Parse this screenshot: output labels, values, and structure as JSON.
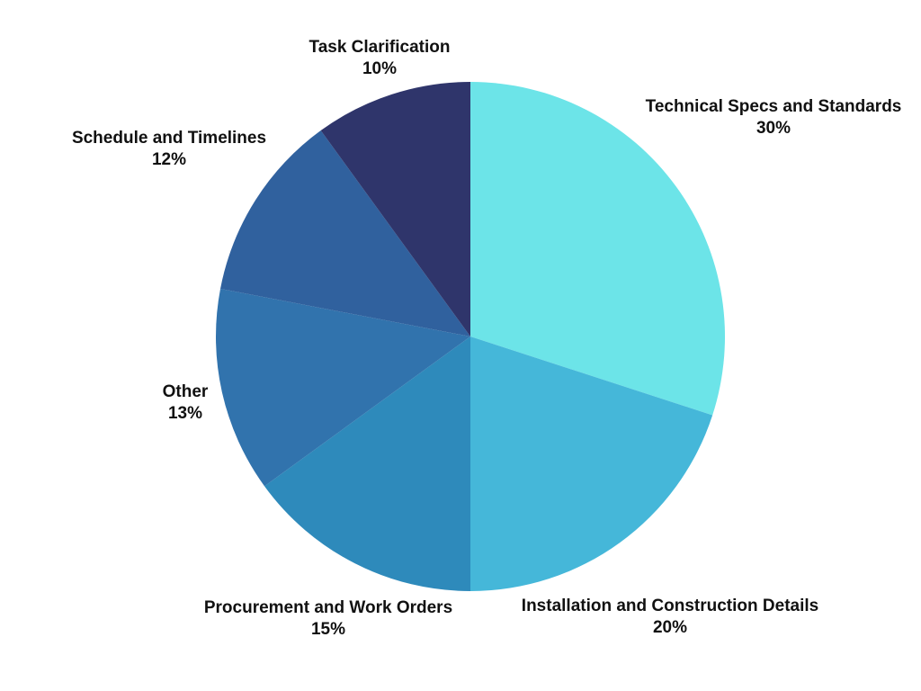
{
  "page": {
    "background": "#ffffff"
  },
  "chart_data": {
    "type": "pie",
    "title": "",
    "legend": "none",
    "label_position": "outside",
    "start_angle_deg": 0,
    "direction": "clockwise",
    "slices": [
      {
        "label": "Technical Specs and Standards",
        "value": 30,
        "pct_label": "30%",
        "color": "#6ce4e8"
      },
      {
        "label": "Installation and Construction Details",
        "value": 20,
        "pct_label": "20%",
        "color": "#45b7d9"
      },
      {
        "label": "Procurement and Work Orders",
        "value": 15,
        "pct_label": "15%",
        "color": "#2e8abb"
      },
      {
        "label": "Other",
        "value": 13,
        "pct_label": "13%",
        "color": "#3173ad"
      },
      {
        "label": "Schedule and Timelines",
        "value": 12,
        "pct_label": "12%",
        "color": "#30619e"
      },
      {
        "label": "Task Clarification",
        "value": 10,
        "pct_label": "10%",
        "color": "#2f356b"
      }
    ]
  }
}
